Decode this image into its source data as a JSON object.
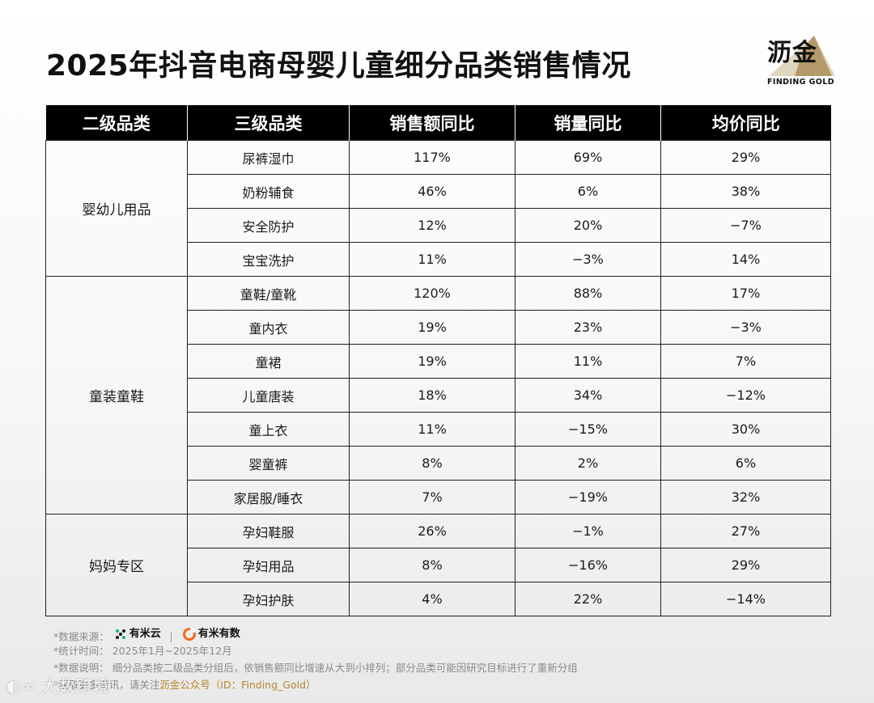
{
  "title": "2025年抖音电商母婴儿童细分品类销售情况",
  "brand": {
    "name_cn": "沥金",
    "name_en": "FINDING GOLD",
    "accent": "#b8862c"
  },
  "table": {
    "headers": [
      "二级品类",
      "三级品类",
      "销售额同比",
      "销量同比",
      "均价同比"
    ],
    "groups": [
      {
        "name": "婴幼儿用品",
        "rows": [
          [
            "尿裤湿巾",
            "117%",
            "69%",
            "29%"
          ],
          [
            "奶粉辅食",
            "46%",
            "6%",
            "38%"
          ],
          [
            "安全防护",
            "12%",
            "20%",
            "−7%"
          ],
          [
            "宝宝洗护",
            "11%",
            "−3%",
            "14%"
          ]
        ]
      },
      {
        "name": "童装童鞋",
        "rows": [
          [
            "童鞋/童靴",
            "120%",
            "88%",
            "17%"
          ],
          [
            "童内衣",
            "19%",
            "23%",
            "−3%"
          ],
          [
            "童裙",
            "19%",
            "11%",
            "7%"
          ],
          [
            "儿童唐装",
            "18%",
            "34%",
            "−12%"
          ],
          [
            "童上衣",
            "11%",
            "−15%",
            "30%"
          ],
          [
            "婴童裤",
            "8%",
            "2%",
            "6%"
          ],
          [
            "家居服/睡衣",
            "7%",
            "−19%",
            "32%"
          ]
        ]
      },
      {
        "name": "妈妈专区",
        "rows": [
          [
            "孕妇鞋服",
            "26%",
            "−1%",
            "27%"
          ],
          [
            "孕妇用品",
            "8%",
            "−16%",
            "29%"
          ],
          [
            "孕妇护肤",
            "4%",
            "22%",
            "−14%"
          ]
        ]
      }
    ]
  },
  "notes": {
    "source_label": "*数据来源：",
    "source_1": "有米云",
    "source_2": "有米有数",
    "period": "*统计时间：  2025年1月~2025年12月",
    "method": "*数据说明：  细分品类按二级品类分组后，依销售额同比增速从大到小排列；部分品类可能因研究目标进行了重新分组",
    "more_prefix": "*获取更多资讯，请关注",
    "more_highlight": "沥金公众号（ID：Finding_Gold）"
  },
  "watermark": "大数跨境"
}
